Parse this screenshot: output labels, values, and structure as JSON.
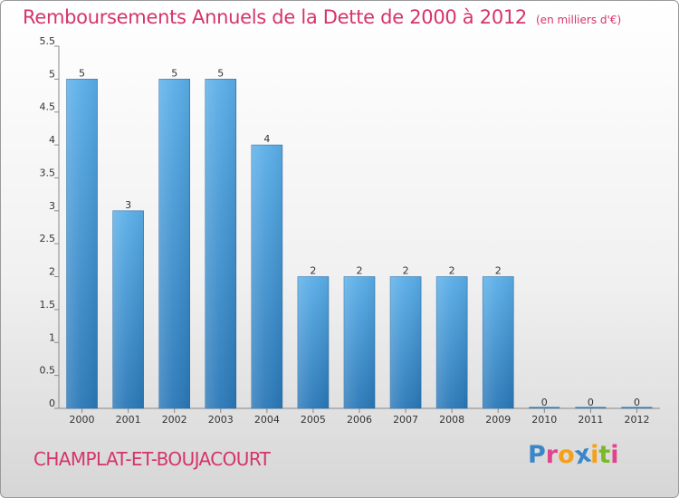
{
  "header": {
    "title": "Remboursements Annuels de la Dette de 2000 à 2012",
    "subtitle": "(en milliers d'€)"
  },
  "footer": {
    "commune": "CHAMPLAT-ET-BOUJACOURT",
    "logo_text": "Proxiti"
  },
  "colors": {
    "title": "#d6336c",
    "bar_light": "#5aaee8",
    "bar_dark": "#2a78b8",
    "logo_letters": [
      "#3a86c8",
      "#e0448c",
      "#f5a01a",
      "#3a86c8",
      "#f5a01a",
      "#7ab929",
      "#e0448c"
    ]
  },
  "chart_data": {
    "type": "bar",
    "categories": [
      "2000",
      "2001",
      "2002",
      "2003",
      "2004",
      "2005",
      "2006",
      "2007",
      "2008",
      "2009",
      "2010",
      "2011",
      "2012"
    ],
    "values": [
      5,
      3,
      5,
      5,
      4,
      2,
      2,
      2,
      2,
      2,
      0,
      0,
      0
    ],
    "data_labels": [
      "5",
      "3",
      "5",
      "5",
      "4",
      "2",
      "2",
      "2",
      "2",
      "2",
      "0",
      "0",
      "0"
    ],
    "yticks": [
      "0",
      "0.5",
      "1",
      "1.5",
      "2",
      "2.5",
      "3",
      "3.5",
      "4",
      "4.5",
      "5",
      "5.5"
    ],
    "ylim": [
      0,
      5.5
    ],
    "xlabel": "",
    "ylabel": "",
    "grid": false,
    "legend": "none"
  }
}
